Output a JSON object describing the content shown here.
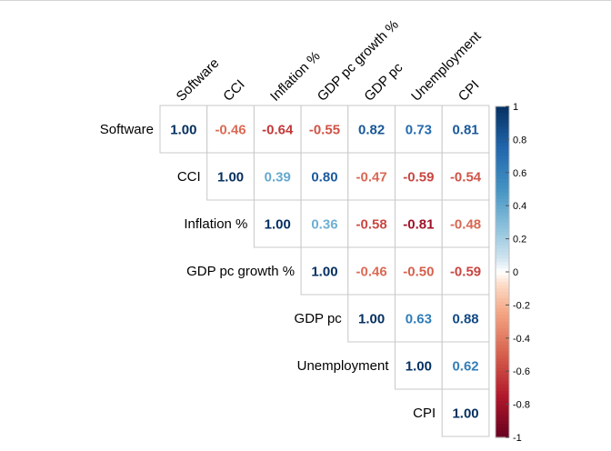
{
  "chart_data": {
    "type": "heatmap",
    "subtype": "correlation-matrix-upper-triangle",
    "variables": [
      "Software",
      "CCI",
      "Inflation %",
      "GDP pc growth %",
      "GDP pc",
      "Unemployment",
      "CPI"
    ],
    "matrix": [
      [
        1.0,
        -0.46,
        -0.64,
        -0.55,
        0.82,
        0.73,
        0.81
      ],
      [
        -0.46,
        1.0,
        0.39,
        0.8,
        -0.47,
        -0.59,
        -0.54
      ],
      [
        -0.64,
        0.39,
        1.0,
        0.36,
        -0.58,
        -0.81,
        -0.48
      ],
      [
        -0.55,
        0.8,
        0.36,
        1.0,
        -0.46,
        -0.5,
        -0.59
      ],
      [
        0.82,
        -0.47,
        -0.58,
        -0.46,
        1.0,
        0.63,
        0.88
      ],
      [
        0.73,
        -0.59,
        -0.81,
        -0.5,
        0.63,
        1.0,
        0.62
      ],
      [
        0.81,
        -0.54,
        -0.48,
        -0.59,
        0.88,
        0.62,
        1.0
      ]
    ],
    "colorbar": {
      "range": [
        -1,
        1
      ],
      "ticks": [
        "1",
        "0.8",
        "0.6",
        "0.4",
        "0.2",
        "0",
        "-0.2",
        "-0.4",
        "-0.6",
        "-0.8",
        "-1"
      ],
      "colors": {
        "negative": "#67001F",
        "zero": "#FFFFFF",
        "positive": "#053061"
      }
    },
    "title": "",
    "legend_position": "right"
  }
}
